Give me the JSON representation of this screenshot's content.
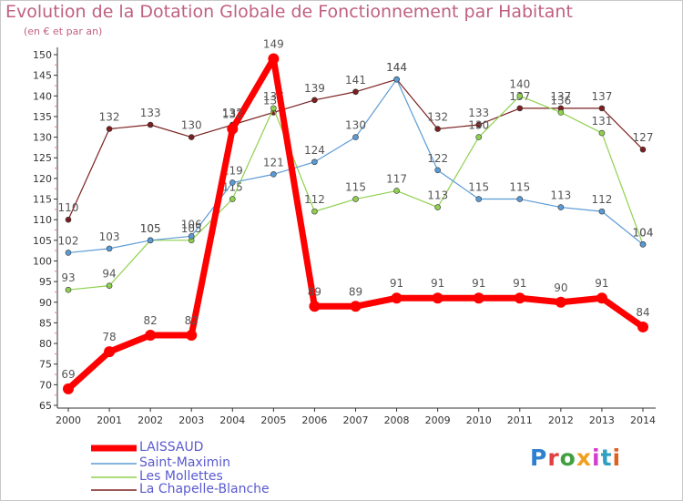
{
  "title": "Evolution de la Dotation Globale de Fonctionnement par Habitant",
  "subtitle": "(en € et par an)",
  "brand": "Proxiti",
  "brand_colors": [
    "#3080d0",
    "#e04040",
    "#40a040",
    "#f0a020",
    "#d040d0",
    "#30a0c0",
    "#e06020"
  ],
  "chart_data": {
    "type": "line",
    "title": "Evolution de la Dotation Globale de Fonctionnement par Habitant",
    "subtitle": "(en € et par an)",
    "xlabel": "",
    "ylabel": "",
    "ylim": [
      65,
      150
    ],
    "y_ticks": [
      65,
      70,
      75,
      80,
      85,
      90,
      95,
      100,
      105,
      110,
      115,
      120,
      125,
      130,
      135,
      140,
      145,
      150
    ],
    "grid": false,
    "legend_position": "bottom-left",
    "x": [
      "2000",
      "2001",
      "2002",
      "2003",
      "2004",
      "2005",
      "2006",
      "2007",
      "2008",
      "2009",
      "2010",
      "2011",
      "2012",
      "2013",
      "2014"
    ],
    "series": [
      {
        "name": "LAISSAUD",
        "color": "#ff0000",
        "values": [
          69,
          78,
          82,
          82,
          132,
          149,
          89,
          89,
          91,
          91,
          91,
          91,
          90,
          91,
          84
        ]
      },
      {
        "name": "Saint-Maximin",
        "color": "#5b9bd5",
        "values": [
          102,
          103,
          105,
          106,
          119,
          121,
          124,
          130,
          144,
          122,
          115,
          115,
          113,
          112,
          104
        ]
      },
      {
        "name": "Les Mollettes",
        "color": "#8fd14f",
        "values": [
          93,
          94,
          105,
          105,
          115,
          137,
          112,
          115,
          117,
          113,
          130,
          140,
          136,
          131,
          104
        ]
      },
      {
        "name": "La Chapelle-Blanche",
        "color": "#7b2020",
        "values": [
          110,
          132,
          133,
          130,
          133,
          136,
          139,
          141,
          144,
          132,
          133,
          137,
          137,
          137,
          127
        ]
      }
    ]
  }
}
